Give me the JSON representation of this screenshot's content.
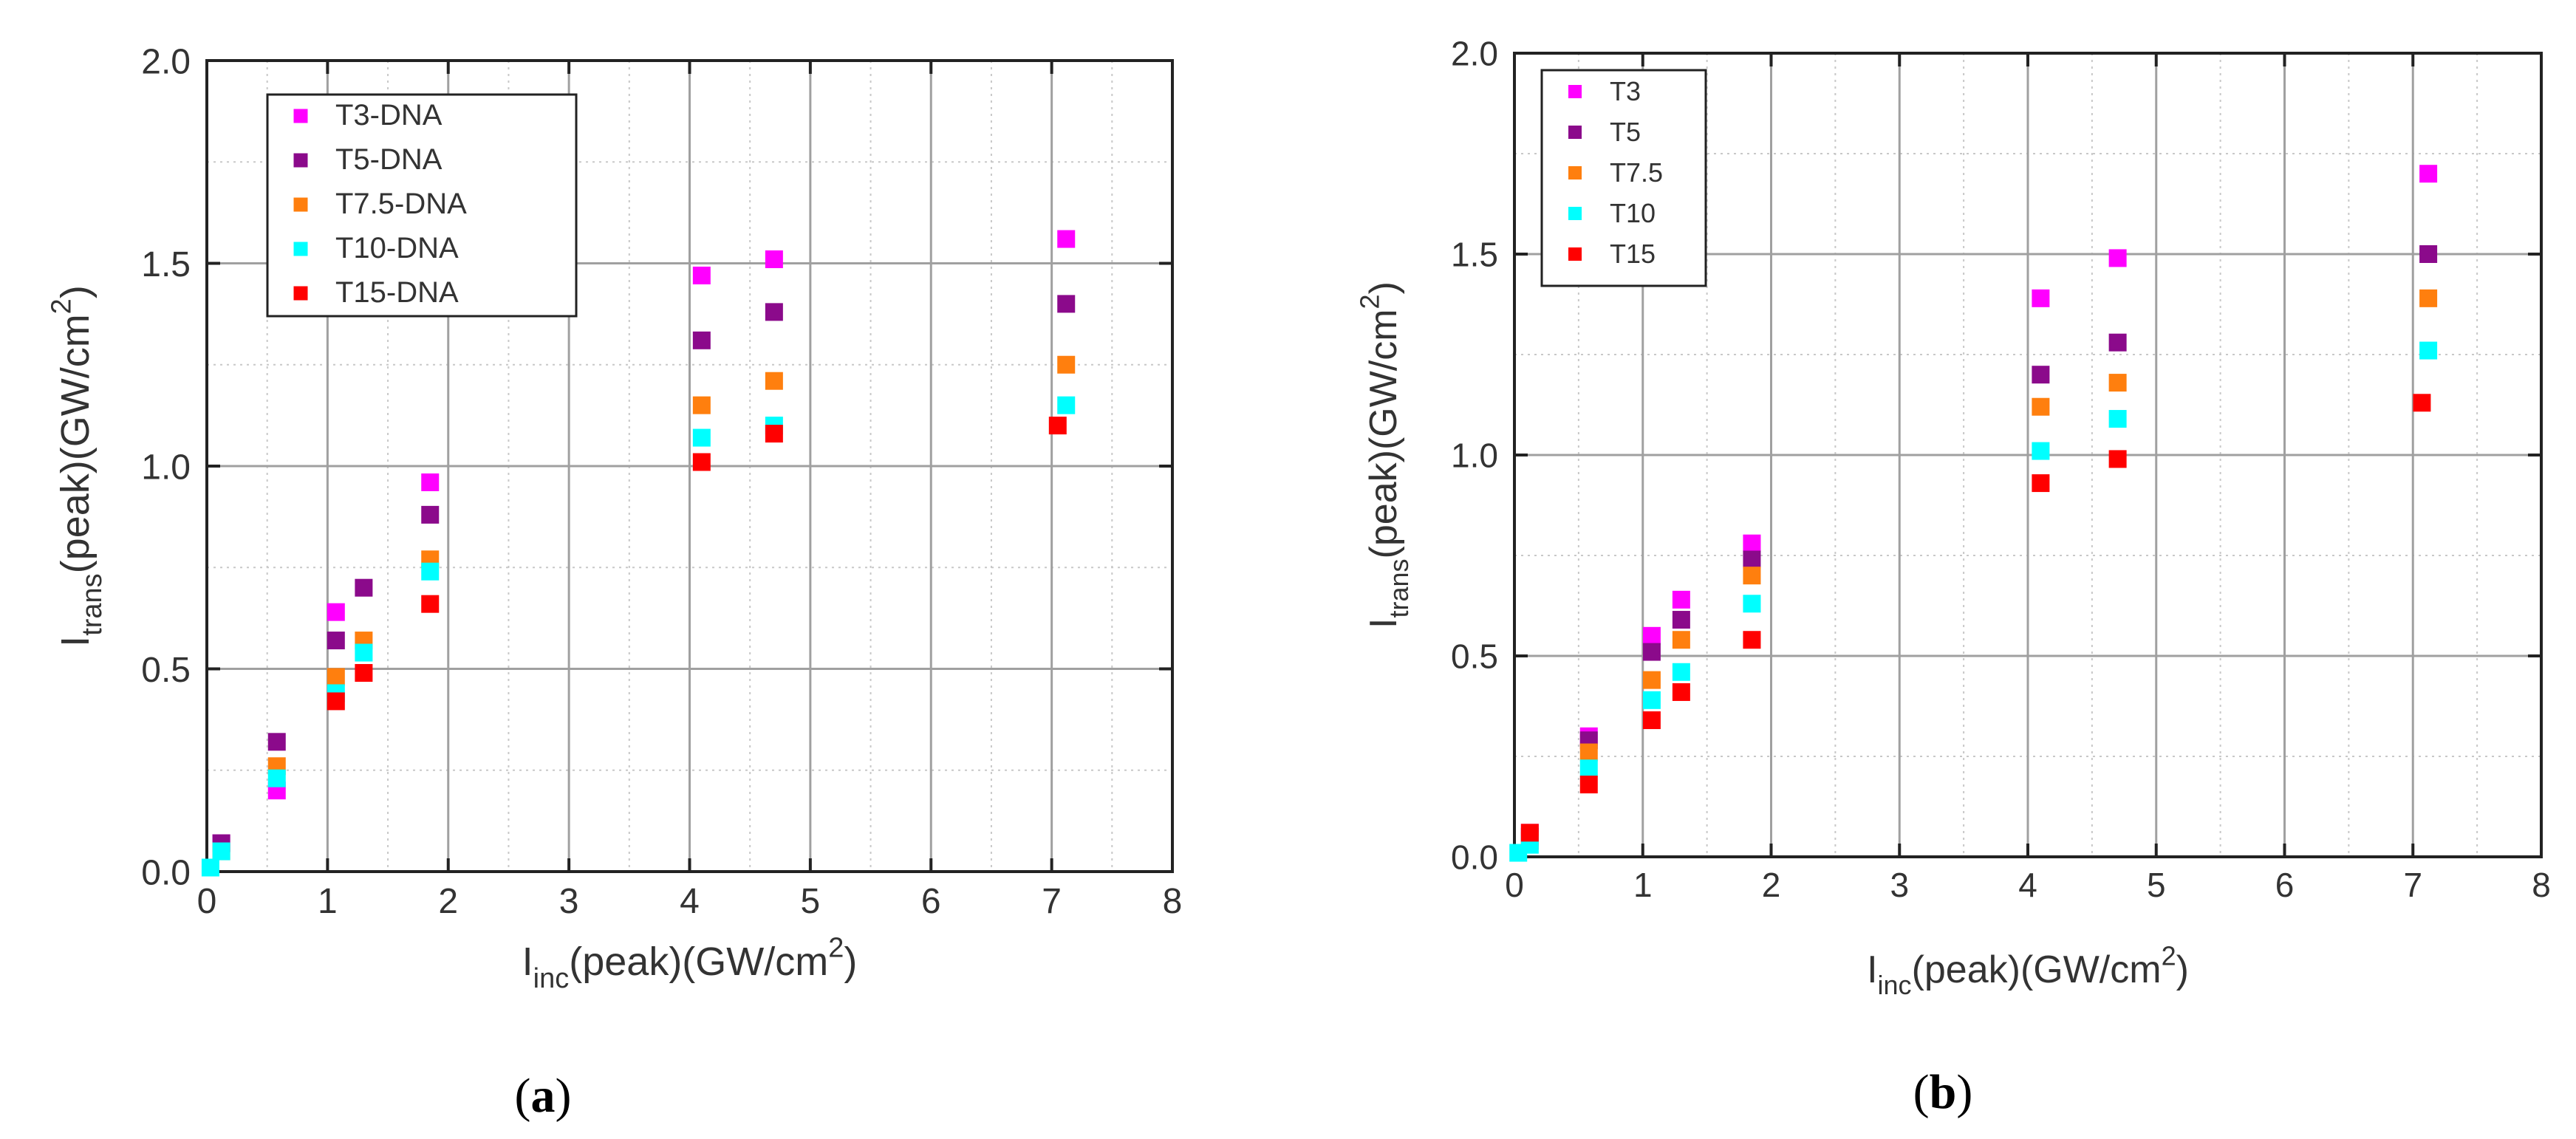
{
  "chart_data": [
    {
      "type": "scatter",
      "panel": "a",
      "caption_open": "(",
      "caption_letter": "a",
      "caption_close": ")",
      "xlabel_main": "I",
      "xlabel_sub": "inc",
      "xlabel_rest": "(peak)(GW/cm",
      "xlabel_sup": "2",
      "xlabel_end": ")",
      "ylabel_main": "I",
      "ylabel_sub": "trans",
      "ylabel_rest": "(peak)(GW/cm",
      "ylabel_sup": "2",
      "ylabel_end": ")",
      "xlim": [
        0,
        8
      ],
      "ylim": [
        0,
        2.0
      ],
      "xticks": [
        0,
        1,
        2,
        3,
        4,
        5,
        6,
        7,
        8
      ],
      "yticks": [
        0.0,
        0.5,
        1.0,
        1.5,
        2.0
      ],
      "xtick_labels": [
        "0",
        "1",
        "2",
        "3",
        "4",
        "5",
        "6",
        "7",
        "8"
      ],
      "ytick_labels": [
        "0.0",
        "0.5",
        "1.0",
        "1.5",
        "2.0"
      ],
      "grid": true,
      "legend_position": "top-left",
      "series": [
        {
          "name": "T3-DNA",
          "color": "#ff00ff",
          "points": [
            [
              0.12,
              0.07
            ],
            [
              0.58,
              0.2
            ],
            [
              1.07,
              0.64
            ],
            [
              1.85,
              0.96
            ],
            [
              4.1,
              1.47
            ],
            [
              4.7,
              1.51
            ],
            [
              7.12,
              1.56
            ]
          ]
        },
        {
          "name": "T5-DNA",
          "color": "#8b0a8b",
          "points": [
            [
              0.12,
              0.07
            ],
            [
              0.58,
              0.32
            ],
            [
              1.07,
              0.57
            ],
            [
              1.3,
              0.7
            ],
            [
              1.85,
              0.88
            ],
            [
              4.1,
              1.31
            ],
            [
              4.7,
              1.38
            ],
            [
              7.12,
              1.4
            ]
          ]
        },
        {
          "name": "T7.5-DNA",
          "color": "#ff7f0e",
          "points": [
            [
              0.12,
              0.05
            ],
            [
              0.58,
              0.26
            ],
            [
              1.07,
              0.48
            ],
            [
              1.3,
              0.57
            ],
            [
              1.85,
              0.77
            ],
            [
              4.1,
              1.15
            ],
            [
              4.7,
              1.21
            ],
            [
              7.12,
              1.25
            ]
          ]
        },
        {
          "name": "T10-DNA",
          "color": "#00ffff",
          "points": [
            [
              0.03,
              0.01
            ],
            [
              0.12,
              0.05
            ],
            [
              0.58,
              0.23
            ],
            [
              1.07,
              0.44
            ],
            [
              1.3,
              0.54
            ],
            [
              1.85,
              0.74
            ],
            [
              4.1,
              1.07
            ],
            [
              4.7,
              1.1
            ],
            [
              7.12,
              1.15
            ]
          ]
        },
        {
          "name": "T15-DNA",
          "color": "#ff0000",
          "points": [
            [
              1.07,
              0.42
            ],
            [
              1.3,
              0.49
            ],
            [
              1.85,
              0.66
            ],
            [
              4.1,
              1.01
            ],
            [
              4.7,
              1.08
            ],
            [
              7.05,
              1.1
            ]
          ]
        }
      ]
    },
    {
      "type": "scatter",
      "panel": "b",
      "caption_open": "(",
      "caption_letter": "b",
      "caption_close": ")",
      "xlabel_main": "I",
      "xlabel_sub": "inc",
      "xlabel_rest": "(peak)(GW/cm",
      "xlabel_sup": "2",
      "xlabel_end": ")",
      "ylabel_main": "I",
      "ylabel_sub": "trans",
      "ylabel_rest": "(peak)(GW/cm",
      "ylabel_sup": "2",
      "ylabel_end": ")",
      "xlim": [
        0,
        8
      ],
      "ylim": [
        0,
        2.0
      ],
      "xticks": [
        0,
        1,
        2,
        3,
        4,
        5,
        6,
        7,
        8
      ],
      "yticks": [
        0.0,
        0.5,
        1.0,
        1.5,
        2.0
      ],
      "xtick_labels": [
        "0",
        "1",
        "2",
        "3",
        "4",
        "5",
        "6",
        "7",
        "8"
      ],
      "ytick_labels": [
        "0.0",
        "0.5",
        "1.0",
        "1.5",
        "2.0"
      ],
      "grid": true,
      "legend_position": "top-left",
      "series": [
        {
          "name": "T3",
          "color": "#ff00ff",
          "points": [
            [
              0.12,
              0.06
            ],
            [
              0.58,
              0.3
            ],
            [
              1.07,
              0.55
            ],
            [
              1.3,
              0.64
            ],
            [
              1.85,
              0.78
            ],
            [
              4.1,
              1.39
            ],
            [
              4.7,
              1.49
            ],
            [
              7.12,
              1.7
            ]
          ]
        },
        {
          "name": "T5",
          "color": "#8b0a8b",
          "points": [
            [
              0.12,
              0.05
            ],
            [
              0.58,
              0.29
            ],
            [
              1.07,
              0.51
            ],
            [
              1.3,
              0.59
            ],
            [
              1.85,
              0.74
            ],
            [
              4.1,
              1.2
            ],
            [
              4.7,
              1.28
            ],
            [
              7.12,
              1.5
            ]
          ]
        },
        {
          "name": "T7.5",
          "color": "#ff7f0e",
          "points": [
            [
              0.12,
              0.04
            ],
            [
              0.58,
              0.26
            ],
            [
              1.07,
              0.44
            ],
            [
              1.3,
              0.54
            ],
            [
              1.85,
              0.7
            ],
            [
              4.1,
              1.12
            ],
            [
              4.7,
              1.18
            ],
            [
              7.12,
              1.39
            ]
          ]
        },
        {
          "name": "T10",
          "color": "#00ffff",
          "points": [
            [
              0.03,
              0.01
            ],
            [
              0.12,
              0.03
            ],
            [
              0.58,
              0.22
            ],
            [
              1.07,
              0.39
            ],
            [
              1.3,
              0.46
            ],
            [
              1.85,
              0.63
            ],
            [
              4.1,
              1.01
            ],
            [
              4.7,
              1.09
            ],
            [
              7.12,
              1.26
            ]
          ]
        },
        {
          "name": "T15",
          "color": "#ff0000",
          "points": [
            [
              0.12,
              0.06
            ],
            [
              0.58,
              0.18
            ],
            [
              1.07,
              0.34
            ],
            [
              1.3,
              0.41
            ],
            [
              1.85,
              0.54
            ],
            [
              4.1,
              0.93
            ],
            [
              4.7,
              0.99
            ],
            [
              7.07,
              1.13
            ]
          ]
        }
      ]
    }
  ]
}
